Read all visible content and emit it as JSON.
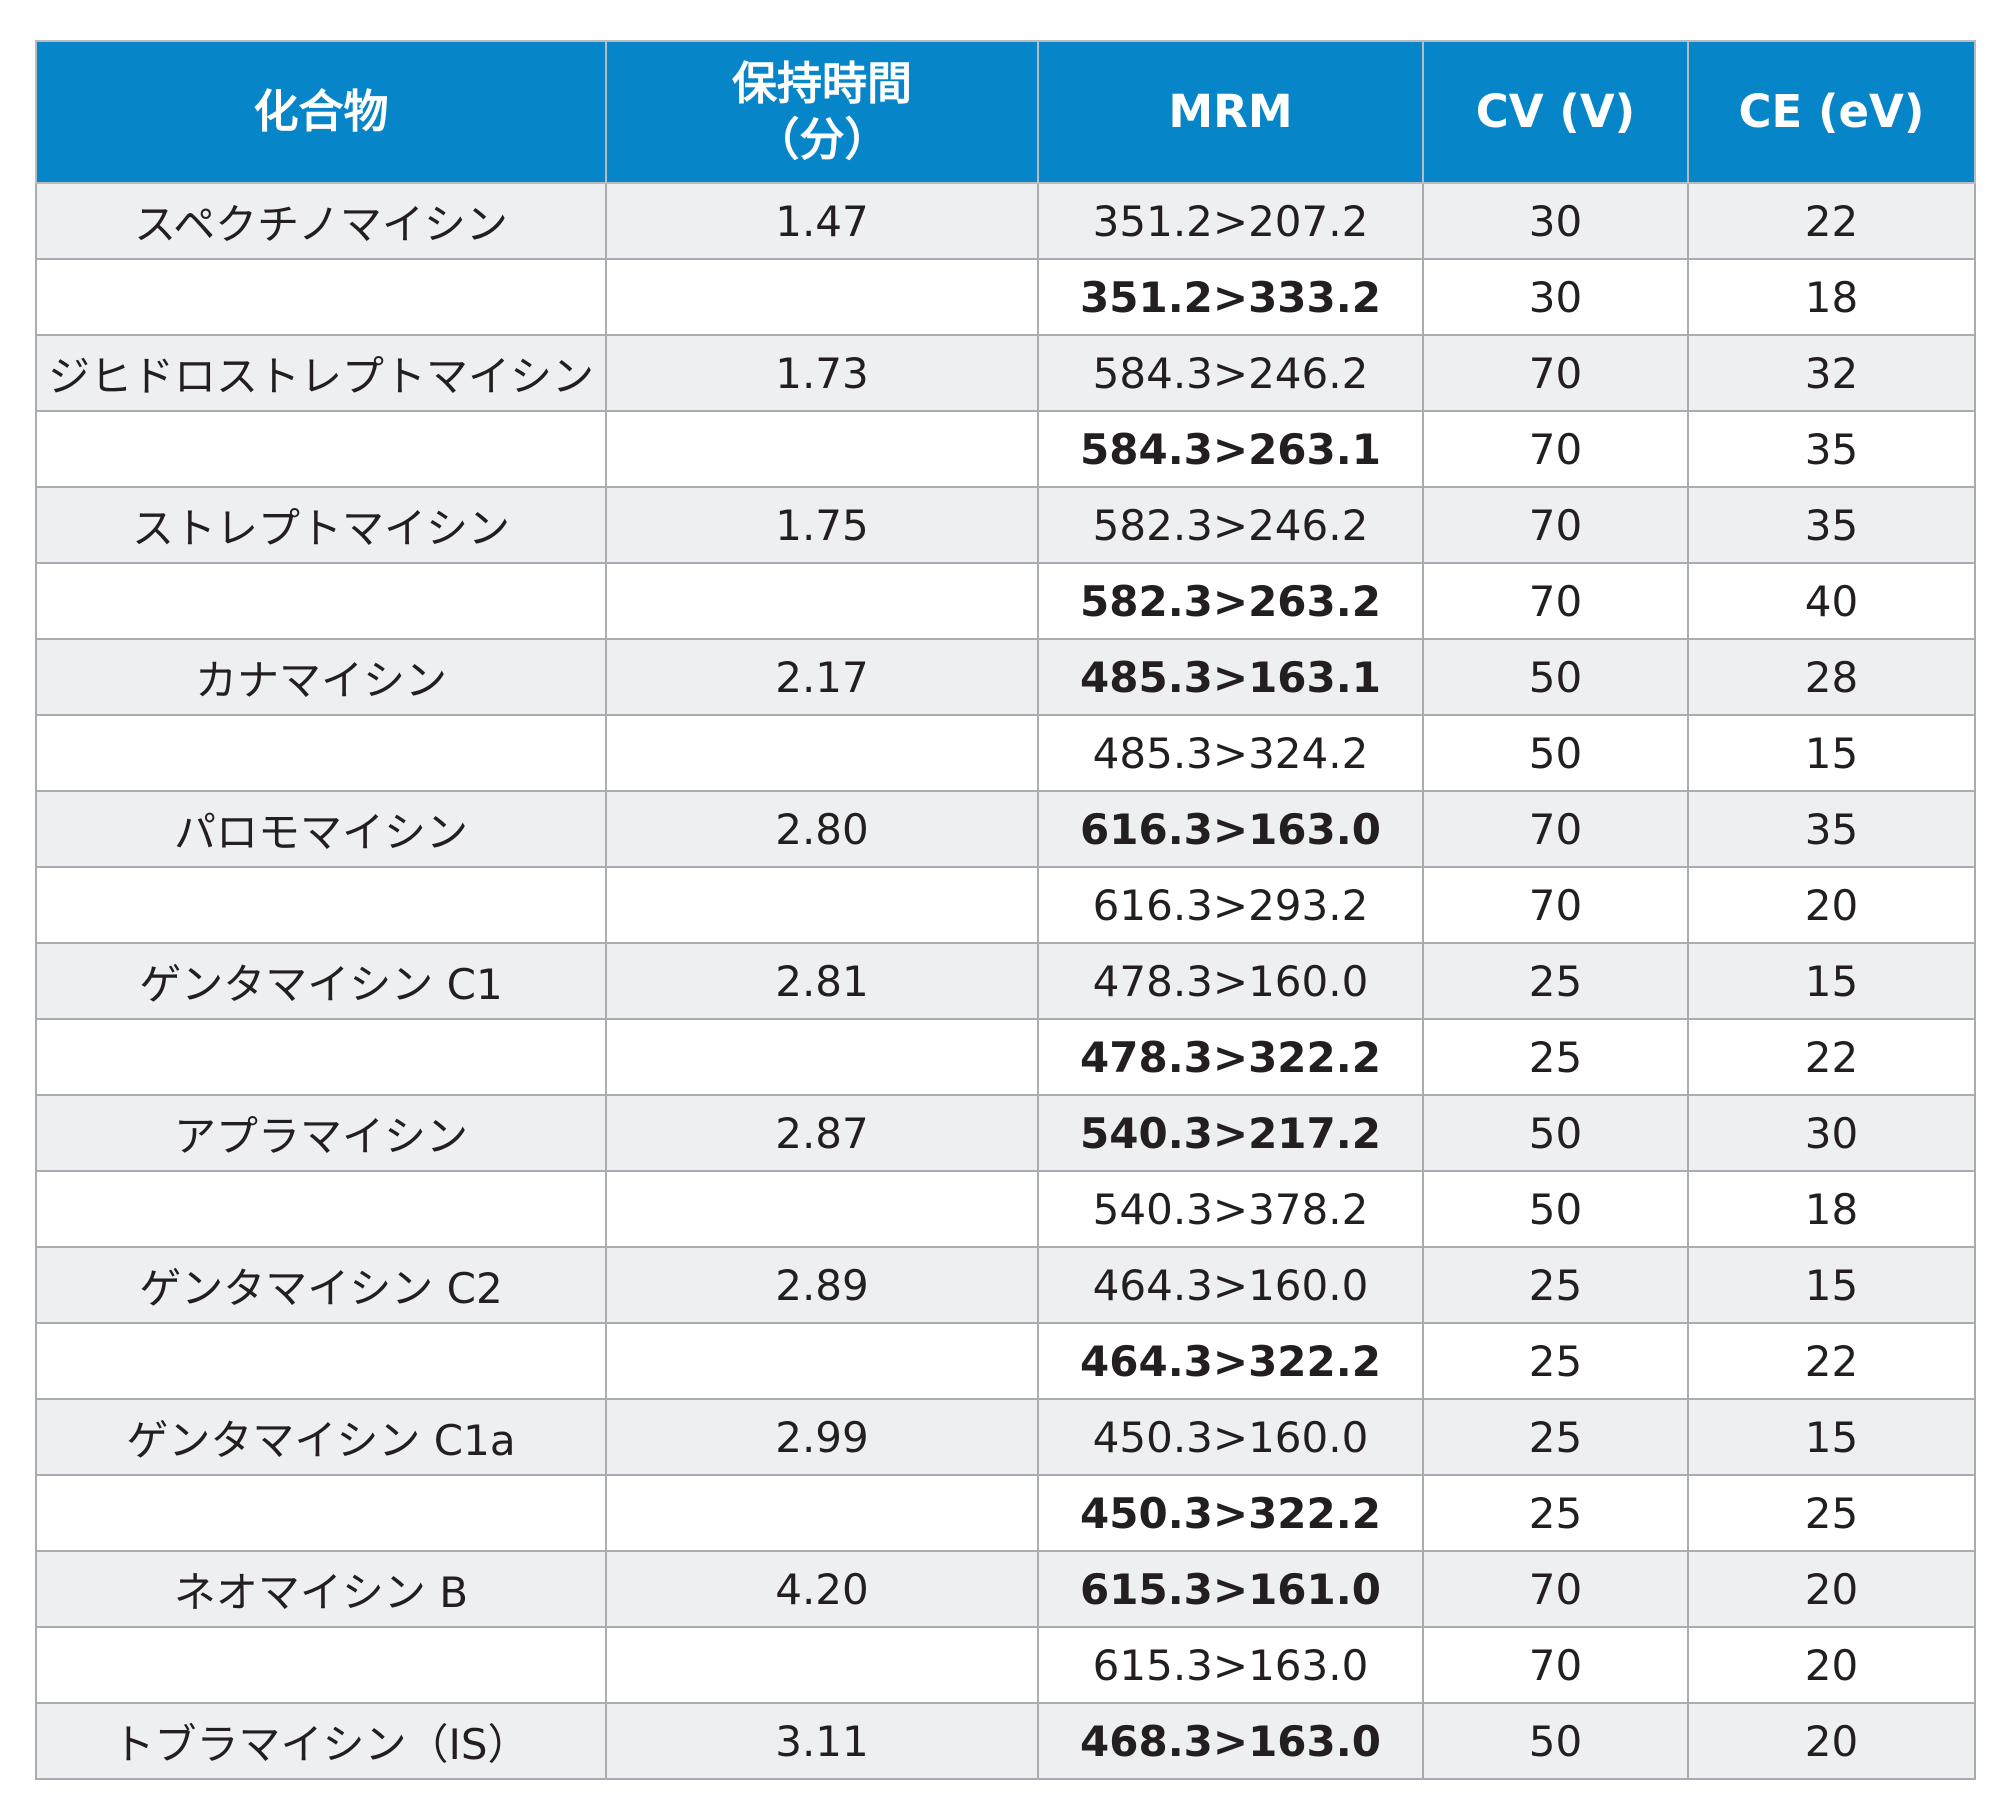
{
  "table": {
    "headers": {
      "compound": "化合物",
      "rt_line1": "保持時間",
      "rt_line2": "（分）",
      "mrm": "MRM",
      "cv": "CV (V)",
      "ce": "CE (eV)"
    },
    "rows": [
      {
        "compound": "スペクチノマイシン",
        "rt": "1.47",
        "mrm": "351.2>207.2",
        "mrm_bold": false,
        "cv": "30",
        "ce": "22"
      },
      {
        "compound": "",
        "rt": "",
        "mrm": "351.2>333.2",
        "mrm_bold": true,
        "cv": "30",
        "ce": "18"
      },
      {
        "compound": "ジヒドロストレプトマイシン",
        "rt": "1.73",
        "mrm": "584.3>246.2",
        "mrm_bold": false,
        "cv": "70",
        "ce": "32"
      },
      {
        "compound": "",
        "rt": "",
        "mrm": "584.3>263.1",
        "mrm_bold": true,
        "cv": "70",
        "ce": "35"
      },
      {
        "compound": "ストレプトマイシン",
        "rt": "1.75",
        "mrm": "582.3>246.2",
        "mrm_bold": false,
        "cv": "70",
        "ce": "35"
      },
      {
        "compound": "",
        "rt": "",
        "mrm": "582.3>263.2",
        "mrm_bold": true,
        "cv": "70",
        "ce": "40"
      },
      {
        "compound": "カナマイシン",
        "rt": "2.17",
        "mrm": "485.3>163.1",
        "mrm_bold": true,
        "cv": "50",
        "ce": "28"
      },
      {
        "compound": "",
        "rt": "",
        "mrm": "485.3>324.2",
        "mrm_bold": false,
        "cv": "50",
        "ce": "15"
      },
      {
        "compound": "パロモマイシン",
        "rt": "2.80",
        "mrm": "616.3>163.0",
        "mrm_bold": true,
        "cv": "70",
        "ce": "35"
      },
      {
        "compound": "",
        "rt": "",
        "mrm": "616.3>293.2",
        "mrm_bold": false,
        "cv": "70",
        "ce": "20"
      },
      {
        "compound": "ゲンタマイシン C1",
        "rt": "2.81",
        "mrm": "478.3>160.0",
        "mrm_bold": false,
        "cv": "25",
        "ce": "15"
      },
      {
        "compound": "",
        "rt": "",
        "mrm": "478.3>322.2",
        "mrm_bold": true,
        "cv": "25",
        "ce": "22"
      },
      {
        "compound": "アプラマイシン",
        "rt": "2.87",
        "mrm": "540.3>217.2",
        "mrm_bold": true,
        "cv": "50",
        "ce": "30"
      },
      {
        "compound": "",
        "rt": "",
        "mrm": "540.3>378.2",
        "mrm_bold": false,
        "cv": "50",
        "ce": "18"
      },
      {
        "compound": "ゲンタマイシン C2",
        "rt": "2.89",
        "mrm": "464.3>160.0",
        "mrm_bold": false,
        "cv": "25",
        "ce": "15"
      },
      {
        "compound": "",
        "rt": "",
        "mrm": "464.3>322.2",
        "mrm_bold": true,
        "cv": "25",
        "ce": "22"
      },
      {
        "compound": "ゲンタマイシン C1a",
        "rt": "2.99",
        "mrm": "450.3>160.0",
        "mrm_bold": false,
        "cv": "25",
        "ce": "15"
      },
      {
        "compound": "",
        "rt": "",
        "mrm": "450.3>322.2",
        "mrm_bold": true,
        "cv": "25",
        "ce": "25"
      },
      {
        "compound": "ネオマイシン B",
        "rt": "4.20",
        "mrm": "615.3>161.0",
        "mrm_bold": true,
        "cv": "70",
        "ce": "20"
      },
      {
        "compound": "",
        "rt": "",
        "mrm": "615.3>163.0",
        "mrm_bold": false,
        "cv": "70",
        "ce": "20"
      },
      {
        "compound": "トブラマイシン（IS）",
        "rt": "3.11",
        "mrm": "468.3>163.0",
        "mrm_bold": true,
        "cv": "50",
        "ce": "20"
      }
    ]
  }
}
